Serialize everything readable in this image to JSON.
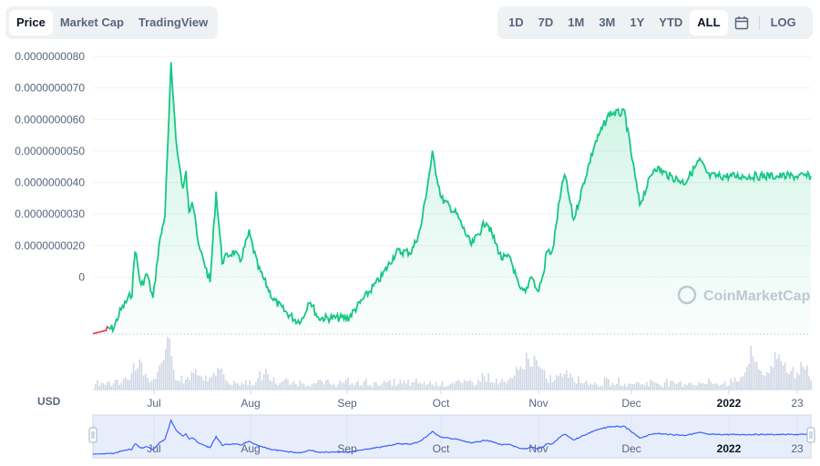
{
  "tabs_left": [
    {
      "label": "Price",
      "active": true
    },
    {
      "label": "Market Cap",
      "active": false
    },
    {
      "label": "TradingView",
      "active": false
    }
  ],
  "ranges": [
    {
      "label": "1D",
      "active": false
    },
    {
      "label": "7D",
      "active": false
    },
    {
      "label": "1M",
      "active": false
    },
    {
      "label": "3M",
      "active": false
    },
    {
      "label": "1Y",
      "active": false
    },
    {
      "label": "YTD",
      "active": false
    },
    {
      "label": "ALL",
      "active": true
    }
  ],
  "calendar_icon": "calendar-icon",
  "log_label": "LOG",
  "currency_label": "USD",
  "watermark": "CoinMarketCap",
  "colors": {
    "line": "#16c784",
    "line_negative": "#ea3943",
    "fill": "#16c784",
    "volume": "#cfd6e4",
    "navigator_line": "#3861fb",
    "navigator_bg": "#e8edfc"
  },
  "chart_data": {
    "type": "line",
    "series": [
      {
        "x": [
          "2021-06-01",
          "2021-06-05",
          "2021-06-08",
          "2021-06-10",
          "2021-06-12",
          "2021-06-14",
          "2021-06-15",
          "2021-06-17",
          "2021-06-19",
          "2021-06-21",
          "2021-06-23",
          "2021-06-25",
          "2021-06-27",
          "2021-06-29",
          "2021-07-01",
          "2021-07-02",
          "2021-07-03",
          "2021-07-04",
          "2021-07-05",
          "2021-07-06",
          "2021-07-08",
          "2021-07-10",
          "2021-07-12",
          "2021-07-14",
          "2021-07-16",
          "2021-07-18",
          "2021-07-20",
          "2021-07-23",
          "2021-07-26",
          "2021-07-28",
          "2021-07-31",
          "2021-08-04",
          "2021-08-08",
          "2021-08-10",
          "2021-08-12",
          "2021-08-15",
          "2021-08-20",
          "2021-08-25",
          "2021-08-30",
          "2021-09-05",
          "2021-09-10",
          "2021-09-15",
          "2021-09-18",
          "2021-09-22",
          "2021-09-25",
          "2021-09-30",
          "2021-10-05",
          "2021-10-10",
          "2021-10-15",
          "2021-10-18",
          "2021-10-21",
          "2021-10-23",
          "2021-10-25",
          "2021-10-27",
          "2021-10-29",
          "2021-10-30",
          "2021-11-01",
          "2021-11-03",
          "2021-11-05",
          "2021-11-08",
          "2021-11-12",
          "2021-11-15",
          "2021-11-20",
          "2021-11-25",
          "2021-11-30",
          "2021-12-05",
          "2021-12-10",
          "2021-12-15",
          "2021-12-20",
          "2021-12-23",
          "2021-12-25",
          "2021-12-28",
          "2021-12-31",
          "2022-01-02",
          "2022-01-04",
          "2022-01-07",
          "2022-01-10",
          "2022-01-13",
          "2022-01-15",
          "2022-01-17",
          "2022-01-19",
          "2022-01-20",
          "2022-01-22",
          "2022-01-23",
          "2022-01-25",
          "2022-01-26"
        ],
        "y": [
          -8e-10,
          -7e-10,
          -6e-10,
          -1e-10,
          2e-10,
          5e-10,
          1.9e-09,
          7e-10,
          1.1e-09,
          3e-10,
          2e-09,
          3e-09,
          7.7e-09,
          5e-09,
          3.8e-09,
          4.3e-09,
          3e-09,
          3.5e-09,
          3e-09,
          2e-09,
          1.5e-09,
          8e-10,
          3.7e-09,
          1.5e-09,
          1.7e-09,
          1.8e-09,
          1.5e-09,
          2.4e-09,
          1.3e-09,
          9e-10,
          3e-10,
          -1e-10,
          -4e-10,
          -3e-10,
          3e-10,
          -3e-10,
          -3e-10,
          -3e-10,
          3e-10,
          1e-09,
          1.8e-09,
          1.8e-09,
          2.5e-09,
          4.9e-09,
          3.5e-09,
          3e-09,
          2e-09,
          2.8e-09,
          1.6e-09,
          1.6e-09,
          6e-10,
          5e-10,
          1.1e-09,
          5e-10,
          1.1e-09,
          1.8e-09,
          1.8e-09,
          3.2e-09,
          4.3e-09,
          2.8e-09,
          4.2e-09,
          5.2e-09,
          6.2e-09,
          6.2e-09,
          3.3e-09,
          4.5e-09,
          4.2e-09,
          4e-09,
          4.7e-09,
          4.2e-09,
          4.2e-09,
          4.2e-09,
          4.2e-09,
          4.2e-09,
          4.2e-09,
          4.2e-09,
          4.2e-09,
          4.2e-09,
          4.2e-09,
          4.2e-09,
          4.2e-09,
          4.2e-09,
          4.2e-09,
          4.2e-09,
          4.2e-09,
          4.2e-09
        ]
      }
    ],
    "y_ticks": [
      "0.0000000080",
      "0.0000000070",
      "0.0000000060",
      "0.0000000050",
      "0.0000000040",
      "0.0000000030",
      "0.0000000020",
      "0"
    ],
    "x_ticks": [
      {
        "label": "Jul",
        "strong": false
      },
      {
        "label": "Aug",
        "strong": false
      },
      {
        "label": "Sep",
        "strong": false
      },
      {
        "label": "Oct",
        "strong": false
      },
      {
        "label": "Nov",
        "strong": false
      },
      {
        "label": "Dec",
        "strong": false
      },
      {
        "label": "2022",
        "strong": true
      },
      {
        "label": "23",
        "strong": false
      }
    ],
    "navigator_ticks": [
      "Jul",
      "Aug",
      "Sep",
      "Oct",
      "Nov",
      "Dec",
      "2022",
      "23"
    ],
    "ylim": [
      -7e-10,
      8e-09
    ],
    "grid": true,
    "title": "",
    "xlabel": "",
    "ylabel": ""
  }
}
